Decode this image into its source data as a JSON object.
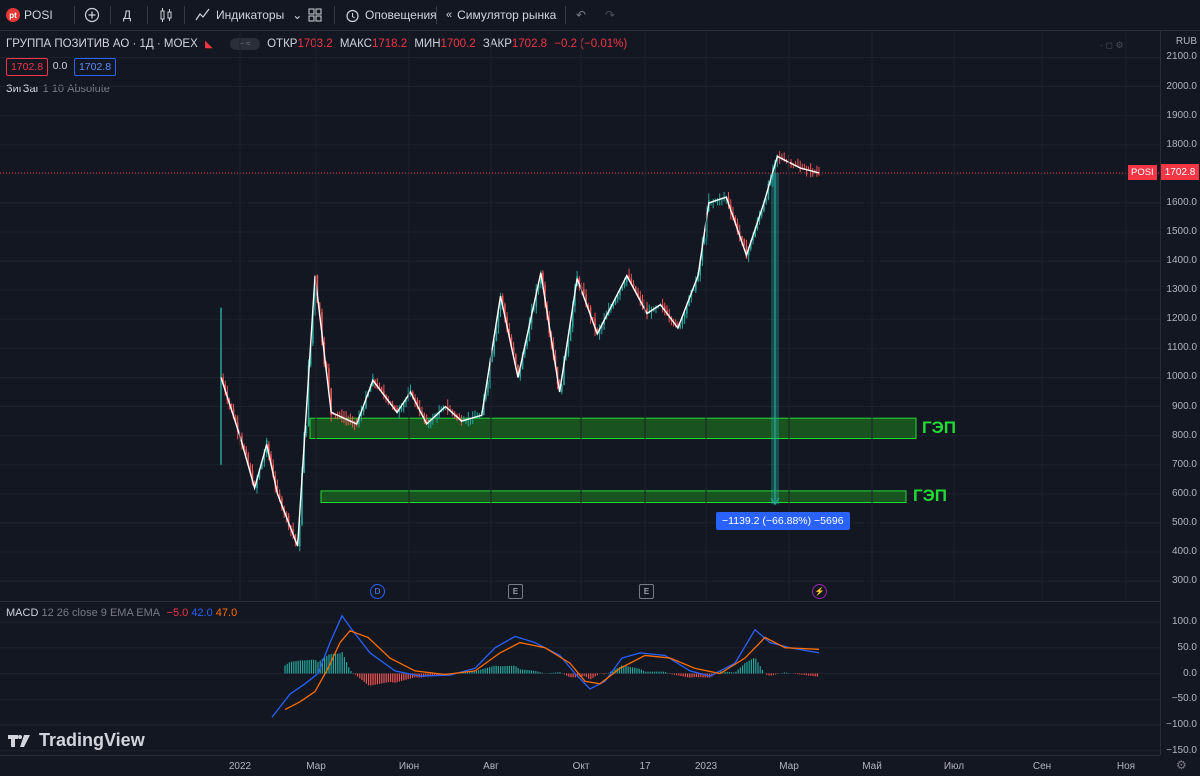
{
  "toolbar": {
    "logo_text": "pt",
    "symbol": "POSI",
    "interval": "Д",
    "indicators_label": "Индикаторы",
    "alerts_label": "Оповещения",
    "replay_label": "Симулятор рынка",
    "currency": "RUB"
  },
  "legend": {
    "title": "ГРУППА ПОЗИТИВ АО · 1Д · MOEX",
    "open_label": "ОТКР",
    "open": "1703.2",
    "high_label": "МАКС",
    "high": "1718.2",
    "low_label": "МИН",
    "low": "1700.2",
    "close_label": "ЗАКР",
    "close": "1702.8",
    "change": "−0.2 (−0.01%)",
    "bid": "1702.8",
    "spread": "0.0",
    "ask": "1702.8"
  },
  "indicator": {
    "name": "ЗигЗаг",
    "params": "1 10 Absolute"
  },
  "macd": {
    "name": "MACD",
    "params": "12 26 close 9 EMA EMA",
    "hist": "−5.0",
    "macd": "42.0",
    "signal": "47.0"
  },
  "price_axis": [
    "2100.0",
    "2000.0",
    "1900.0",
    "1800.0",
    "1700.0",
    "1600.0",
    "1500.0",
    "1400.0",
    "1300.0",
    "1200.0",
    "1100.0",
    "1000.0",
    "900.0",
    "800.0",
    "700.0",
    "600.0",
    "500.0",
    "400.0",
    "300.0"
  ],
  "macd_axis": [
    "100.0",
    "50.0",
    "0.0",
    "−50.0",
    "−100.0",
    "−150.0"
  ],
  "time_axis": [
    "2022",
    "Мар",
    "Июн",
    "Авг",
    "Окт",
    "17",
    "2023",
    "Мар",
    "Май",
    "Июл",
    "Сен",
    "Ноя"
  ],
  "current_price": "1702.8",
  "price_tag_symbol": "POSI",
  "gap_label_1": "ГЭП",
  "gap_label_2": "ГЭП",
  "measure_text": "−1139.2 (−66.88%) −5696",
  "events": [
    "D",
    "E",
    "E",
    "⚡"
  ],
  "brand": "TradingView",
  "colors": {
    "up": "#26a69a",
    "down": "#ef5350",
    "zigzag": "#ffffff",
    "gap_zone": "#1b5e20",
    "gap_border": "#22dd33",
    "macd": "#2962ff",
    "signal": "#ff6d00",
    "bg": "#131722"
  },
  "chart_data": {
    "type": "line",
    "title": "ГРУППА ПОЗИТИВ АО · 1Д · MOEX",
    "ylim": [
      300,
      2100
    ],
    "zigzag": {
      "x": [
        "2021-12-30",
        "2022-01-13",
        "2022-01-24",
        "2022-02-02",
        "2022-02-10",
        "2022-02-25",
        "2022-03-10",
        "2022-03-22",
        "2022-04-10",
        "2022-04-22",
        "2022-05-10",
        "2022-05-20",
        "2022-06-01",
        "2022-06-15",
        "2022-06-27",
        "2022-07-12",
        "2022-07-26",
        "2022-08-08",
        "2022-08-25",
        "2022-09-08",
        "2022-09-21",
        "2022-10-06",
        "2022-10-28",
        "2022-11-12",
        "2022-11-22",
        "2022-12-05",
        "2022-12-20",
        "2022-12-28",
        "2023-01-10",
        "2023-01-25",
        "2023-02-07",
        "2023-02-17",
        "2023-03-06",
        "2023-03-20"
      ],
      "values": [
        1000,
        800,
        620,
        770,
        600,
        420,
        1350,
        880,
        840,
        990,
        880,
        950,
        840,
        900,
        850,
        870,
        1280,
        1000,
        1360,
        950,
        1340,
        1150,
        1350,
        1220,
        1250,
        1170,
        1350,
        1600,
        1620,
        1420,
        1600,
        1760,
        1720,
        1703
      ]
    },
    "gap_zones": [
      {
        "low": 790,
        "high": 860,
        "label": "ГЭП"
      },
      {
        "low": 570,
        "high": 610,
        "label": "ГЭП"
      }
    ]
  }
}
